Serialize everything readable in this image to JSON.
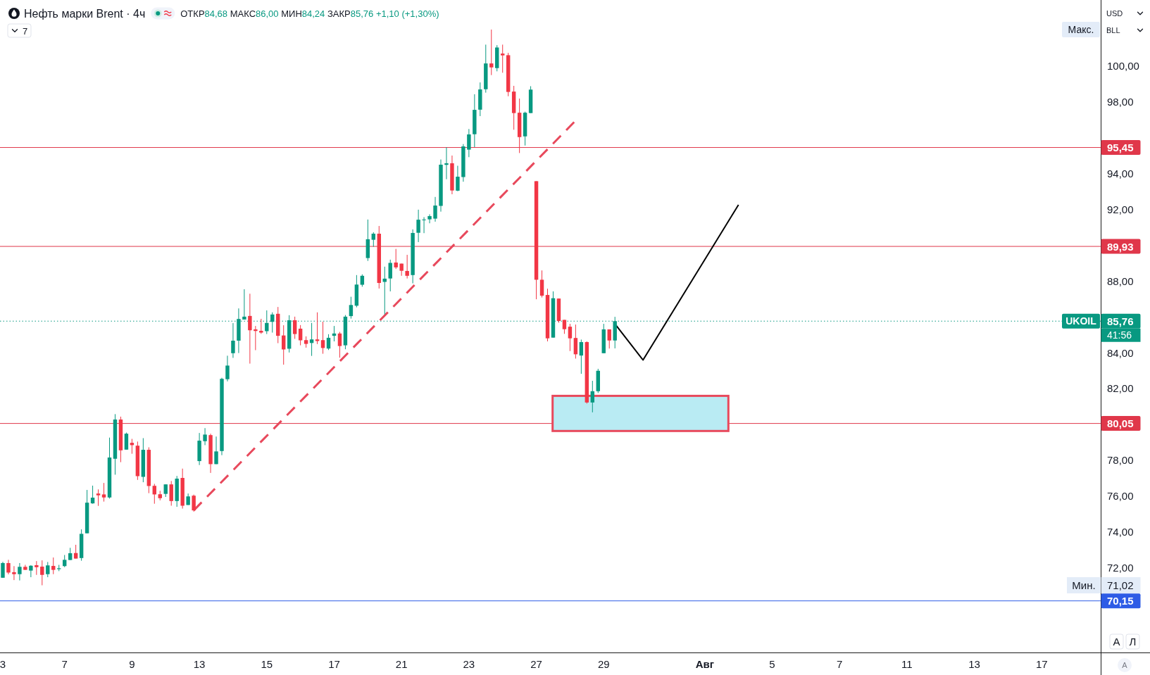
{
  "chart_data": {
    "type": "candlestick",
    "title": "Нефть марки Brent · 4ч",
    "subtitle": "ОТКР84,68 МАКС86,00 МИН84,24 ЗАКР85,76 +1,10 (+1,30%)",
    "categories": [
      "3",
      null,
      null,
      null,
      null,
      null,
      null,
      null,
      null,
      null,
      null,
      "7",
      null,
      null,
      null,
      null,
      null,
      null,
      null,
      null,
      null,
      null,
      null,
      "9",
      null,
      null,
      null,
      null,
      null,
      null,
      null,
      null,
      null,
      null,
      null,
      "13",
      null,
      null,
      null,
      null,
      null,
      null,
      null,
      null,
      null,
      null,
      null,
      "15",
      null,
      null,
      null,
      null,
      null,
      null,
      null,
      null,
      null,
      null,
      null,
      "17",
      null,
      null,
      null,
      null,
      null,
      null,
      null,
      null,
      null,
      null,
      null,
      "21",
      null,
      null,
      null,
      null,
      null,
      null,
      null,
      null,
      null,
      null,
      null,
      "23",
      null,
      null,
      null,
      null,
      null,
      null,
      null,
      null,
      null,
      null,
      null,
      "27",
      null,
      null,
      null,
      null,
      null,
      null,
      null,
      null,
      null,
      null,
      null,
      "29",
      null,
      null,
      null,
      null,
      null,
      null,
      null,
      null,
      null,
      null,
      null,
      null,
      null,
      null,
      null,
      null,
      null,
      "Авг",
      null,
      null,
      null,
      null,
      null,
      null,
      null,
      null,
      null,
      null,
      null,
      "5",
      null,
      null,
      null,
      null,
      null,
      null,
      null,
      null,
      null,
      null,
      null,
      "7",
      null,
      null,
      null,
      null,
      null,
      null,
      null,
      null,
      null,
      null,
      null,
      "11",
      null,
      null,
      null,
      null,
      null,
      null,
      null,
      null,
      null,
      null,
      null,
      "13",
      null,
      null,
      null,
      null,
      null,
      null,
      null,
      null,
      null,
      null,
      null,
      "17",
      null,
      null,
      null,
      null,
      null,
      null,
      null,
      null,
      null,
      null
    ],
    "ohlc": [
      [
        71.44,
        72.33,
        71.44,
        72.26
      ],
      [
        72.26,
        72.44,
        71.63,
        71.73
      ],
      [
        71.75,
        72.09,
        71.31,
        71.64
      ],
      [
        71.64,
        72.26,
        71.29,
        72.05
      ],
      [
        72.05,
        72.16,
        71.88,
        71.88
      ],
      [
        71.84,
        72.14,
        71.47,
        72.11
      ],
      [
        72.14,
        72.37,
        71.6,
        72.03
      ],
      [
        72.06,
        72.41,
        71.02,
        71.6
      ],
      [
        71.64,
        72.32,
        71.47,
        72.13
      ],
      [
        72.1,
        72.57,
        71.64,
        71.88
      ],
      [
        71.92,
        72.16,
        71.81,
        71.97
      ],
      [
        72.09,
        72.71,
        72.03,
        72.44
      ],
      [
        72.43,
        73.11,
        72.43,
        72.81
      ],
      [
        72.82,
        73.28,
        72.51,
        72.51
      ],
      [
        72.54,
        74.14,
        72.39,
        73.89
      ],
      [
        73.92,
        76.34,
        73.92,
        75.63
      ],
      [
        75.59,
        76.58,
        75.57,
        75.91
      ],
      [
        76.14,
        76.37,
        75.45,
        76.04
      ],
      [
        76.09,
        76.73,
        75.69,
        75.92
      ],
      [
        75.92,
        79.26,
        75.86,
        78.15
      ],
      [
        78.08,
        80.57,
        77.19,
        80.27
      ],
      [
        80.27,
        80.43,
        77.89,
        78.55
      ],
      [
        78.59,
        79.54,
        78.59,
        79.48
      ],
      [
        78.97,
        79.19,
        78.36,
        78.84
      ],
      [
        78.81,
        79.04,
        76.9,
        77.11
      ],
      [
        77.07,
        79.23,
        76.77,
        78.58
      ],
      [
        78.58,
        78.72,
        76.16,
        76.56
      ],
      [
        76.57,
        76.68,
        75.57,
        76.09
      ],
      [
        76.1,
        76.29,
        75.76,
        75.88
      ],
      [
        76.12,
        76.65,
        75.95,
        76.65
      ],
      [
        76.65,
        76.84,
        75.46,
        75.72
      ],
      [
        75.72,
        77.12,
        75.4,
        76.97
      ],
      [
        77.01,
        77.53,
        75.3,
        75.46
      ],
      [
        75.5,
        76.14,
        75.5,
        75.98
      ],
      [
        76.02,
        76.08,
        75.13,
        75.2
      ],
      [
        77.95,
        79.52,
        77.73,
        79.09
      ],
      [
        79.06,
        79.79,
        78.84,
        79.43
      ],
      [
        79.4,
        79.48,
        77.29,
        77.78
      ],
      [
        77.78,
        79.32,
        77.78,
        78.49
      ],
      [
        78.51,
        82.6,
        78.28,
        82.54
      ],
      [
        82.52,
        83.83,
        82.4,
        83.28
      ],
      [
        83.97,
        85.65,
        83.71,
        84.67
      ],
      [
        84.67,
        86.47,
        83.98,
        85.88
      ],
      [
        85.85,
        87.54,
        85.85,
        86.01
      ],
      [
        86.05,
        87.29,
        83.39,
        85.25
      ],
      [
        85.3,
        85.49,
        84.14,
        85.21
      ],
      [
        85.22,
        85.89,
        85.05,
        85.12
      ],
      [
        85.2,
        86.36,
        85.04,
        85.66
      ],
      [
        85.72,
        86.25,
        85.12,
        86.13
      ],
      [
        86.17,
        86.55,
        84.53,
        84.94
      ],
      [
        84.96,
        85.53,
        83.33,
        84.18
      ],
      [
        84.22,
        86.09,
        84.01,
        85.81
      ],
      [
        85.81,
        86.01,
        84.77,
        85.04
      ],
      [
        85.34,
        85.54,
        84.41,
        84.69
      ],
      [
        84.7,
        84.91,
        84.28,
        84.49
      ],
      [
        84.54,
        85.66,
        83.82,
        84.74
      ],
      [
        84.74,
        86.25,
        84.48,
        84.65
      ],
      [
        84.7,
        85.73,
        83.94,
        84.26
      ],
      [
        84.23,
        85.03,
        84.15,
        84.83
      ],
      [
        84.94,
        85.49,
        84.63,
        85.07
      ],
      [
        85.07,
        85.16,
        83.72,
        84.37
      ],
      [
        84.41,
        86.1,
        84.19,
        86.01
      ],
      [
        86.04,
        87.12,
        85.9,
        86.66
      ],
      [
        86.62,
        88.33,
        86.53,
        87.8
      ],
      [
        87.79,
        88.37,
        87.68,
        88.29
      ],
      [
        89.28,
        91.43,
        89.12,
        90.33
      ],
      [
        90.3,
        90.72,
        89.91,
        90.64
      ],
      [
        90.64,
        91.07,
        87.58,
        87.89
      ],
      [
        87.95,
        88.8,
        86.14,
        88.13
      ],
      [
        88.14,
        89.19,
        87.42,
        89.01
      ],
      [
        89.03,
        89.79,
        88.67,
        88.76
      ],
      [
        88.97,
        88.97,
        88.29,
        88.57
      ],
      [
        88.56,
        89.46,
        88.14,
        88.29
      ],
      [
        88.33,
        90.88,
        87.87,
        90.68
      ],
      [
        90.69,
        91.98,
        90.17,
        91.42
      ],
      [
        91.39,
        91.56,
        90.67,
        91.43
      ],
      [
        91.44,
        91.72,
        91.22,
        91.62
      ],
      [
        91.48,
        92.69,
        91.31,
        92.21
      ],
      [
        92.19,
        94.78,
        91.87,
        94.49
      ],
      [
        94.48,
        95.46,
        93.68,
        94.57
      ],
      [
        94.57,
        95,
        92.84,
        93.05
      ],
      [
        93.04,
        94.43,
        93.01,
        93.82
      ],
      [
        93.8,
        95.64,
        93.54,
        95.51
      ],
      [
        95.33,
        96.48,
        94.91,
        96.18
      ],
      [
        96.19,
        98.42,
        95.47,
        97.55
      ],
      [
        97.56,
        99.08,
        97.2,
        98.69
      ],
      [
        98.7,
        101.19,
        98.51,
        100.14
      ],
      [
        100.14,
        102.03,
        99.49,
        99.92
      ],
      [
        99.88,
        101.16,
        99.7,
        101.03
      ],
      [
        100.69,
        101.19,
        99.62,
        100.59
      ],
      [
        100.6,
        100.73,
        98.31,
        98.55
      ],
      [
        98.57,
        98.89,
        96.44,
        97.37
      ],
      [
        97.39,
        98.18,
        95.14,
        96.03
      ],
      [
        96.07,
        97.45,
        95.56,
        97.39
      ],
      [
        97.37,
        98.87,
        97.37,
        98.68
      ],
      [
        93.57,
        93.57,
        86.98,
        88.07
      ],
      [
        88.07,
        88.59,
        87.08,
        87.18
      ],
      [
        87.22,
        87.57,
        84.63,
        84.8
      ],
      [
        84.84,
        87.42,
        84.84,
        87.04
      ],
      [
        87.02,
        87.02,
        85.67,
        85.77
      ],
      [
        85.83,
        85.83,
        85.05,
        85.31
      ],
      [
        85.45,
        85.61,
        84.09,
        84.8
      ],
      [
        84.82,
        85.57,
        83.67,
        83.91
      ],
      [
        83.84,
        84.73,
        82.82,
        84.59
      ],
      [
        84.59,
        84.63,
        81.16,
        81.22
      ],
      [
        81.22,
        82.43,
        80.67,
        81.85
      ],
      [
        81.85,
        83.1,
        81.75,
        82.99
      ],
      [
        83.97,
        85.61,
        83.97,
        85.3
      ],
      [
        85.3,
        85.3,
        84.23,
        84.68
      ],
      [
        84.68,
        86,
        84.24,
        85.76
      ],
      null,
      null,
      null,
      null,
      null,
      null,
      null,
      null,
      null,
      null,
      null,
      null,
      null,
      null,
      null,
      null,
      null,
      null,
      null,
      null,
      null,
      null,
      null,
      null,
      null,
      null,
      null,
      null,
      null,
      null,
      null,
      null,
      null,
      null,
      null,
      null,
      null,
      null,
      null,
      null,
      null,
      null,
      null,
      null,
      null,
      null,
      null,
      null,
      null,
      null,
      null,
      null,
      null,
      null,
      null,
      null,
      null,
      null,
      null,
      null,
      null,
      null,
      null,
      null,
      null,
      null,
      null,
      null,
      null,
      null,
      null,
      null,
      null,
      null,
      null,
      null,
      null,
      null,
      null,
      null,
      null,
      null,
      null,
      null,
      null,
      null
    ],
    "series": [
      {
        "type": "line",
        "color": "#e8495c",
        "line_style": "dashed",
        "values": [
          null,
          null,
          null,
          null,
          null,
          null,
          null,
          null,
          null,
          null,
          null,
          null,
          null,
          null,
          null,
          null,
          null,
          null,
          null,
          null,
          null,
          null,
          null,
          null,
          null,
          null,
          null,
          null,
          null,
          null,
          null,
          null,
          null,
          null,
          75.2,
          null,
          null,
          null,
          null,
          null,
          null,
          null,
          null,
          null,
          null,
          null,
          null,
          null,
          null,
          null,
          null,
          null,
          null,
          null,
          null,
          null,
          null,
          null,
          null,
          null,
          null,
          null,
          null,
          null,
          null,
          null,
          null,
          null,
          null,
          null,
          null,
          null,
          null,
          null,
          null,
          null,
          null,
          null,
          null,
          null,
          null,
          null,
          null,
          null,
          null,
          null,
          null,
          null,
          null,
          null,
          null,
          null,
          null,
          null,
          null,
          null,
          null,
          null,
          null,
          null,
          null,
          null,
          96.95,
          null,
          null,
          null,
          null,
          null,
          null,
          null,
          null,
          null,
          null,
          null,
          null,
          null,
          null,
          null,
          null,
          null,
          null,
          null,
          null,
          null,
          null,
          null,
          null,
          null,
          null,
          null,
          null,
          null,
          null,
          null,
          null,
          null,
          null,
          null,
          null,
          null,
          null,
          null,
          null,
          null,
          null,
          null,
          null,
          null,
          null,
          null,
          null,
          null,
          null,
          null,
          null,
          null,
          null,
          null,
          null,
          null,
          null,
          null,
          null,
          null,
          null,
          null,
          null,
          null,
          null,
          null,
          null,
          null,
          null,
          null,
          null,
          null,
          null,
          null,
          null,
          null,
          null,
          null,
          null,
          null,
          null,
          null,
          null,
          null,
          null,
          null,
          null,
          null,
          null,
          null,
          null,
          null
        ]
      },
      {
        "type": "line",
        "color": "#000000",
        "values": [
          null,
          null,
          null,
          null,
          null,
          null,
          null,
          null,
          null,
          null,
          null,
          null,
          null,
          null,
          null,
          null,
          null,
          null,
          null,
          null,
          null,
          null,
          null,
          null,
          null,
          null,
          null,
          null,
          null,
          null,
          null,
          null,
          null,
          null,
          null,
          null,
          null,
          null,
          null,
          null,
          null,
          null,
          null,
          null,
          null,
          null,
          null,
          null,
          null,
          null,
          null,
          null,
          null,
          null,
          null,
          null,
          null,
          null,
          null,
          null,
          null,
          null,
          null,
          null,
          null,
          null,
          null,
          null,
          null,
          null,
          null,
          null,
          null,
          null,
          null,
          null,
          null,
          null,
          null,
          null,
          null,
          null,
          null,
          null,
          null,
          null,
          null,
          null,
          null,
          null,
          null,
          null,
          null,
          null,
          null,
          null,
          null,
          null,
          null,
          null,
          null,
          null,
          null,
          null,
          null,
          null,
          null,
          null,
          null,
          85.61,
          null,
          null,
          null,
          null,
          83.59,
          null,
          null,
          null,
          null,
          null,
          null,
          null,
          null,
          null,
          null,
          null,
          null,
          null,
          null,
          null,
          null,
          92.25,
          null,
          null,
          null,
          null,
          null,
          null,
          null,
          null,
          null,
          null,
          null,
          null,
          null,
          null,
          null,
          null,
          null,
          null,
          null,
          null,
          null,
          null,
          null,
          null,
          null,
          null,
          null,
          null,
          null,
          null,
          null,
          null,
          null,
          null,
          null,
          null,
          null,
          null,
          null,
          null,
          null,
          null,
          null,
          null,
          null,
          null,
          null,
          null,
          null,
          null,
          null,
          null,
          null,
          null,
          null,
          null,
          null,
          null,
          null,
          null,
          null,
          null,
          null,
          null
        ]
      }
    ],
    "ylim": [
      67.27,
      103.68
    ],
    "yticks": [
      {
        "value": 72,
        "label": "72,00"
      },
      {
        "value": 74,
        "label": "74,00"
      },
      {
        "value": 76,
        "label": "76,00"
      },
      {
        "value": 78,
        "label": "78,00"
      },
      {
        "value": 82,
        "label": "82,00"
      },
      {
        "value": 84,
        "label": "84,00"
      },
      {
        "value": 88,
        "label": "88,00"
      },
      {
        "value": 92,
        "label": "92,00"
      },
      {
        "value": 94,
        "label": "94,00"
      },
      {
        "value": 98,
        "label": "98,00"
      },
      {
        "value": 100,
        "label": "100,00"
      }
    ],
    "ref_lines": [
      {
        "axis": "y",
        "value": 95.45,
        "label": "95,45",
        "color": "#e0374a"
      },
      {
        "axis": "y",
        "value": 89.93,
        "label": "89,93",
        "color": "#e0374a"
      },
      {
        "axis": "y",
        "value": 80.05,
        "label": "80,05",
        "color": "#e0374a"
      },
      {
        "axis": "y",
        "value": 70.15,
        "label": "70,15",
        "color": "#2e5ce6"
      },
      {
        "axis": "y",
        "value": 85.76,
        "label": "85,76",
        "color": "#089981",
        "line_style": "dotted"
      }
    ],
    "annotations": [
      "7",
      "USD",
      "BLL",
      "Макс.",
      {
        "text": "UKOIL",
        "y": 85.76
      },
      "41:56",
      "Мин.",
      "71,02",
      "A",
      "Л",
      "A"
    ]
  }
}
